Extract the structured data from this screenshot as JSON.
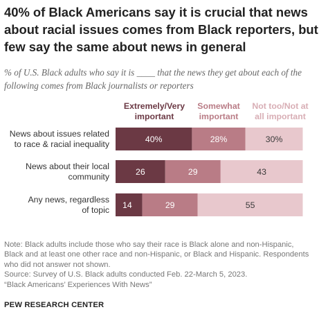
{
  "title": "40% of Black Americans say it is crucial that news about racial issues comes from Black reporters, but few say the same about news in general",
  "subtitle": "% of U.S. Black adults who say it is ____ that the news they get about each of the following comes from Black journalists or reporters",
  "chart_data": {
    "type": "bar",
    "orientation": "horizontal",
    "stacked": true,
    "legend_position": "top",
    "series": [
      {
        "name": "Extremely/Very important",
        "color": "#6b3944",
        "text_color": "#ffffff",
        "labels": [
          "40%",
          "26",
          "14"
        ]
      },
      {
        "name": "Somewhat important",
        "color": "#b97c86",
        "text_color": "#ffffff",
        "labels": [
          "28%",
          "29",
          "29"
        ]
      },
      {
        "name": "Not too/Not at all important",
        "color": "#e8c8cd",
        "text_color": "#3a3a3a",
        "labels": [
          "30%",
          "43",
          "55"
        ]
      }
    ],
    "categories": [
      "News about issues related to race & racial inequality",
      "News about their local community",
      "Any news, regardless of topic"
    ],
    "values": [
      [
        40,
        28,
        30
      ],
      [
        26,
        29,
        43
      ],
      [
        14,
        29,
        55
      ]
    ],
    "legend_colors": [
      "#6b3944",
      "#b97c86",
      "#d8aeb5"
    ]
  },
  "note": {
    "lines": [
      "Note: Black adults include those who say their race is Black alone and non-Hispanic,",
      "Black and at least one other race and non-Hispanic, or Black and Hispanic. Respondents",
      "who did not answer not shown.",
      "Source: Survey of U.S. Black adults conducted Feb. 22-March 5, 2023.",
      "“Black Americans’ Experiences With News”"
    ]
  },
  "source_org": "PEW RESEARCH CENTER"
}
